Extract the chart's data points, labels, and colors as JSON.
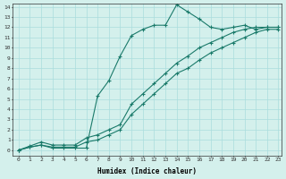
{
  "xlabel": "Humidex (Indice chaleur)",
  "bg_color": "#d4f0ec",
  "grid_color": "#aadddd",
  "line_color": "#1a7a6a",
  "xlim": [
    -0.5,
    23.3
  ],
  "ylim": [
    -0.5,
    14.3
  ],
  "xticks": [
    0,
    1,
    2,
    3,
    4,
    5,
    6,
    7,
    8,
    9,
    10,
    11,
    12,
    13,
    14,
    15,
    16,
    17,
    18,
    19,
    20,
    21,
    22,
    23
  ],
  "yticks": [
    0,
    1,
    2,
    3,
    4,
    5,
    6,
    7,
    8,
    9,
    10,
    11,
    12,
    13,
    14
  ],
  "curve1_x": [
    0,
    1,
    2,
    3,
    4,
    5,
    6,
    7,
    8,
    9,
    10,
    11,
    12,
    13,
    14,
    15,
    16,
    17,
    18,
    19,
    20,
    21,
    22,
    23
  ],
  "curve1_y": [
    0,
    0.3,
    0.5,
    0.2,
    0.2,
    0.2,
    0.2,
    5.3,
    6.8,
    9.2,
    11.2,
    11.8,
    12.2,
    12.2,
    14.2,
    13.5,
    12.8,
    12.0,
    11.8,
    12.0,
    12.2,
    11.8,
    12.0,
    12.0
  ],
  "curve2_x": [
    0,
    1,
    2,
    3,
    4,
    5,
    6,
    7,
    8,
    9,
    10,
    11,
    12,
    13,
    14,
    15,
    16,
    17,
    18,
    19,
    20,
    21,
    22,
    23
  ],
  "curve2_y": [
    0,
    0.4,
    0.8,
    0.5,
    0.5,
    0.5,
    1.2,
    1.5,
    2.0,
    2.5,
    4.5,
    5.5,
    6.5,
    7.5,
    8.5,
    9.2,
    10.0,
    10.5,
    11.0,
    11.5,
    11.8,
    12.0,
    12.0,
    12.0
  ],
  "curve3_x": [
    0,
    1,
    2,
    3,
    4,
    5,
    6,
    7,
    8,
    9,
    10,
    11,
    12,
    13,
    14,
    15,
    16,
    17,
    18,
    19,
    20,
    21,
    22,
    23
  ],
  "curve3_y": [
    0,
    0.3,
    0.5,
    0.3,
    0.3,
    0.3,
    0.8,
    1.0,
    1.5,
    2.0,
    3.5,
    4.5,
    5.5,
    6.5,
    7.5,
    8.0,
    8.8,
    9.5,
    10.0,
    10.5,
    11.0,
    11.5,
    11.8,
    11.8
  ],
  "marker": "+"
}
